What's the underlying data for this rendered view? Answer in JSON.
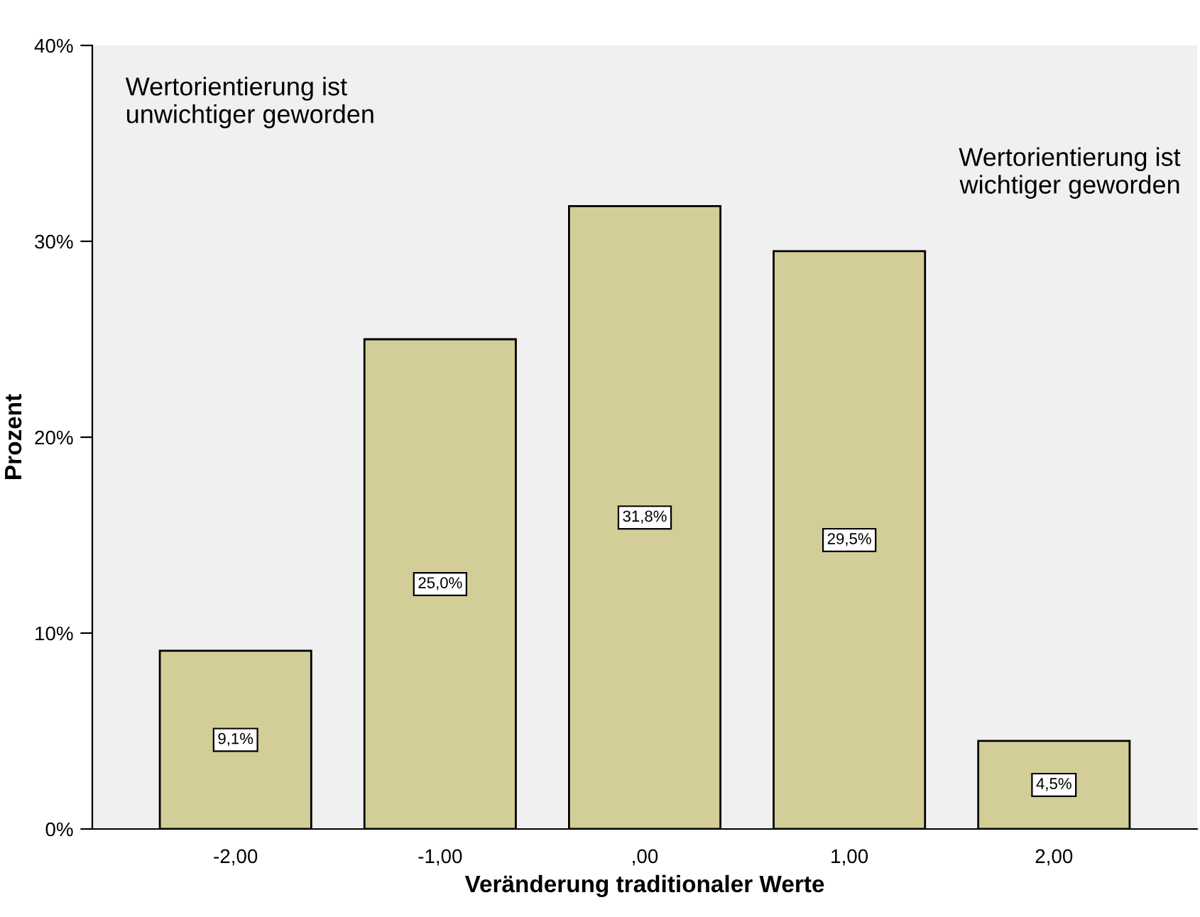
{
  "chart_data": {
    "type": "bar",
    "xlabel": "Veränderung traditionaler Werte",
    "ylabel": "Prozent",
    "categories": [
      "-2,00",
      "-1,00",
      ",00",
      "1,00",
      "2,00"
    ],
    "values": [
      9.1,
      25.0,
      31.8,
      29.5,
      4.5
    ],
    "value_labels": [
      "9,1%",
      "25,0%",
      "31,8%",
      "29,5%",
      "4,5%"
    ],
    "color": "#d3ce97",
    "ylim": [
      0,
      40
    ],
    "yticks": [
      {
        "value": 0,
        "label": "0%"
      },
      {
        "value": 10,
        "label": "10%"
      },
      {
        "value": 20,
        "label": "20%"
      },
      {
        "value": 30,
        "label": "30%"
      },
      {
        "value": 40,
        "label": "40%"
      }
    ],
    "annotations": [
      "Wertorientierung ist\nunwichtiger geworden",
      "Wertorientierung ist\nwichtiger geworden"
    ],
    "grid": false
  }
}
